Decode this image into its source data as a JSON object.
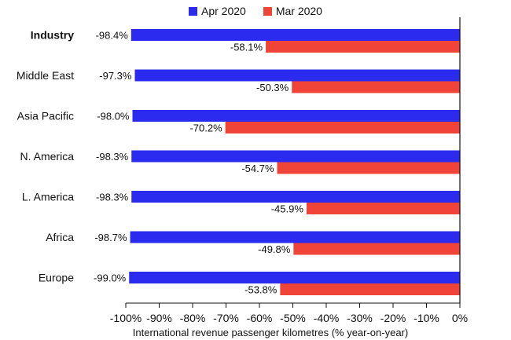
{
  "chart_data": {
    "type": "bar",
    "orientation": "horizontal",
    "categories": [
      "Industry",
      "Middle East",
      "Asia Pacific",
      "N. America",
      "L. America",
      "Africa",
      "Europe"
    ],
    "category_bold": [
      "Industry"
    ],
    "series": [
      {
        "name": "Apr 2020",
        "color": "#2b2bf0",
        "values": [
          -98.4,
          -97.3,
          -98.0,
          -98.3,
          -98.3,
          -98.7,
          -99.0
        ],
        "labels": [
          "-98.4%",
          "-97.3%",
          "-98.0%",
          "-98.3%",
          "-98.3%",
          "-98.7%",
          "-99.0%"
        ]
      },
      {
        "name": "Mar 2020",
        "color": "#f04438",
        "values": [
          -58.1,
          -50.3,
          -70.2,
          -54.7,
          -45.9,
          -49.8,
          -53.8
        ],
        "labels": [
          "-58.1%",
          "-50.3%",
          "-70.2%",
          "-54.7%",
          "-45.9%",
          "-49.8%",
          "-53.8%"
        ]
      }
    ],
    "xlim": [
      -100,
      0
    ],
    "xticks": [
      -100,
      -90,
      -80,
      -70,
      -60,
      -50,
      -40,
      -30,
      -20,
      -10,
      0
    ],
    "xtick_labels": [
      "-100%",
      "-90%",
      "-80%",
      "-70%",
      "-60%",
      "-50%",
      "-40%",
      "-30%",
      "-20%",
      "-10%",
      "0%"
    ],
    "xlabel": "International revenue passenger kilometres (% year-on-year)",
    "legend_position": "top-center",
    "grid": false
  }
}
